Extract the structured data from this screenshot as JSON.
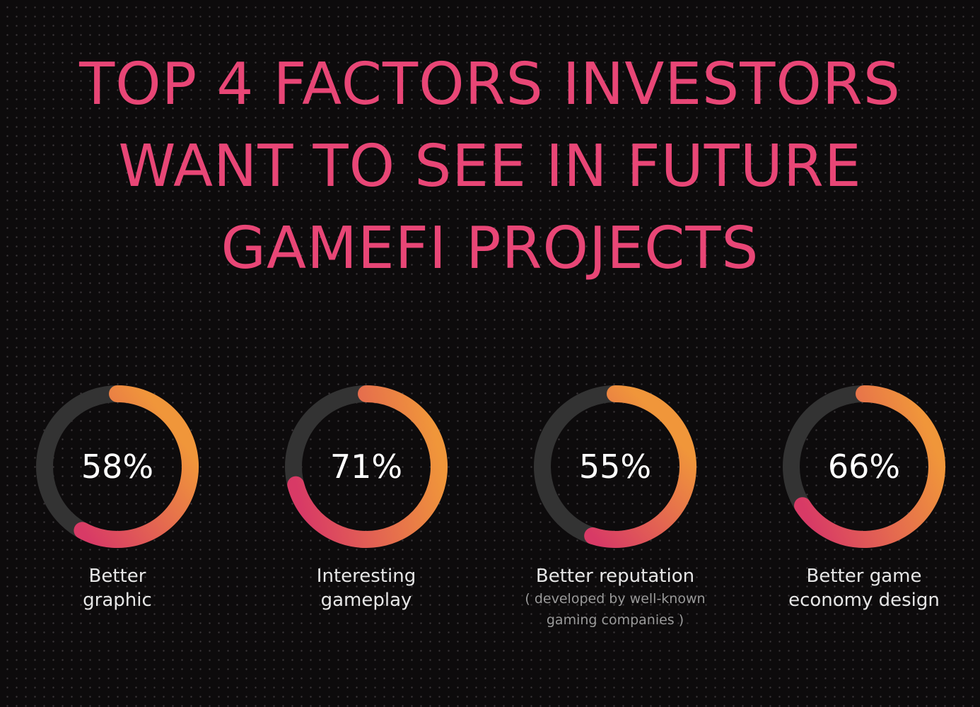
{
  "title_lines": [
    "TOP 4 FACTORS INVESTORS",
    "WANT TO SEE IN FUTURE",
    "GAMEFI PROJECTS"
  ],
  "colors": {
    "background": "#0d0b0c",
    "title": "#e84676",
    "ring_track": "#333333",
    "gradient_start": "#d83a66",
    "gradient_end": "#f0963a",
    "value_text": "#ffffff",
    "label_text": "#e6e6e6",
    "note_text": "#9a9a9a"
  },
  "chart_data": {
    "type": "pie",
    "title": "TOP 4 FACTORS INVESTORS WANT TO SEE IN FUTURE GAMEFI PROJECTS",
    "unit": "%",
    "categories": [
      "Better graphic",
      "Interesting gameplay",
      "Better reputation",
      "Better game economy design"
    ],
    "values": [
      58,
      71,
      55,
      66
    ],
    "items": [
      {
        "value": 58,
        "value_label": "58%",
        "label_lines": [
          "Better",
          "graphic"
        ],
        "note_lines": []
      },
      {
        "value": 71,
        "value_label": "71%",
        "label_lines": [
          "Interesting",
          "gameplay"
        ],
        "note_lines": []
      },
      {
        "value": 55,
        "value_label": "55%",
        "label_lines": [
          "Better reputation"
        ],
        "note_lines": [
          "( developed by well-known",
          "gaming companies )"
        ]
      },
      {
        "value": 66,
        "value_label": "66%",
        "label_lines": [
          "Better game",
          "economy design"
        ],
        "note_lines": []
      }
    ]
  }
}
